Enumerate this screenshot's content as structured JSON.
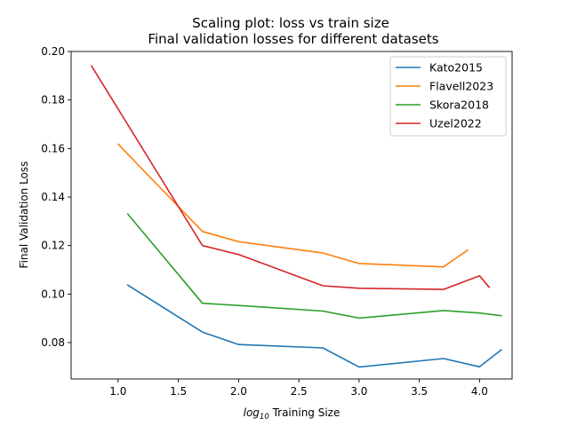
{
  "chart_data": {
    "type": "line",
    "title": "Scaling plot: loss vs train size",
    "subtitle": "Final validation losses for different datasets",
    "xlabel": "log10 Training Size",
    "ylabel": "Final Validation Loss",
    "xlim": [
      0.61,
      4.27
    ],
    "ylim": [
      0.065,
      0.2
    ],
    "xticks": [
      "1.0",
      "1.5",
      "2.0",
      "2.5",
      "3.0",
      "3.5",
      "4.0"
    ],
    "yticks": [
      "0.08",
      "0.10",
      "0.12",
      "0.14",
      "0.16",
      "0.18",
      "0.20"
    ],
    "grid": false,
    "legend_position": "top-right",
    "series": [
      {
        "name": "Kato2015",
        "color": "#1f77b4",
        "x": [
          1.08,
          1.7,
          2.0,
          2.7,
          3.0,
          3.7,
          4.0,
          4.18
        ],
        "y": [
          0.1037,
          0.0843,
          0.0792,
          0.0778,
          0.0699,
          0.0734,
          0.07,
          0.077
        ]
      },
      {
        "name": "Flavell2023",
        "color": "#ff7f0e",
        "x": [
          1.0,
          1.7,
          2.0,
          2.7,
          3.0,
          3.7,
          3.9
        ],
        "y": [
          0.1618,
          0.1258,
          0.1216,
          0.1169,
          0.1126,
          0.1112,
          0.1181
        ]
      },
      {
        "name": "Skora2018",
        "color": "#2ca02c",
        "x": [
          1.08,
          1.7,
          2.0,
          2.7,
          3.0,
          3.7,
          4.0,
          4.18
        ],
        "y": [
          0.133,
          0.0962,
          0.0953,
          0.093,
          0.0901,
          0.0932,
          0.0922,
          0.0911
        ]
      },
      {
        "name": "Uzel2022",
        "color": "#d62728",
        "x": [
          0.78,
          1.7,
          2.0,
          2.7,
          3.0,
          3.7,
          4.0,
          4.08
        ],
        "y": [
          0.194,
          0.12,
          0.1163,
          0.1034,
          0.1024,
          0.1019,
          0.1075,
          0.1028
        ]
      }
    ]
  }
}
